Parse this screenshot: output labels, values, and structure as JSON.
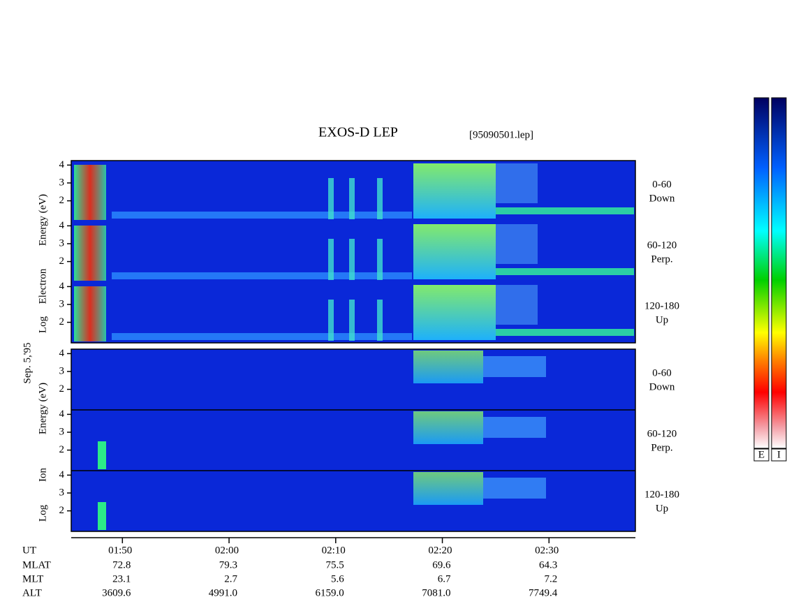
{
  "chart_data": {
    "type": "spectrogram",
    "title": "EXOS-D LEP",
    "file": "[95090501.lep]",
    "date": "Sep. 5,'95",
    "groups": [
      {
        "ylabel": [
          "Log",
          "Electron",
          "Energy (eV)"
        ],
        "panels": [
          {
            "pitch": "0-60",
            "dir": "Down"
          },
          {
            "pitch": "60-120",
            "dir": "Perp."
          },
          {
            "pitch": "120-180",
            "dir": "Up"
          }
        ]
      },
      {
        "ylabel": [
          "Log",
          "Ion",
          "Energy (eV)"
        ],
        "panels": [
          {
            "pitch": "0-60",
            "dir": "Down"
          },
          {
            "pitch": "60-120",
            "dir": "Perp."
          },
          {
            "pitch": "120-180",
            "dir": "Up"
          }
        ]
      }
    ],
    "ylim": [
      0.85,
      4.25
    ],
    "yticks": [
      2,
      3,
      4
    ],
    "xlim": [
      105.2,
      158.1
    ],
    "xticks": [
      {
        "value": 110,
        "label": "01:50"
      },
      {
        "value": 120,
        "label": "02:00"
      },
      {
        "value": 130,
        "label": "02:10"
      },
      {
        "value": 140,
        "label": "02:20"
      },
      {
        "value": 150,
        "label": "02:30"
      }
    ],
    "ut_label": "UT",
    "ephemeris": [
      {
        "name": "MLAT",
        "values": [
          "72.8",
          "79.3",
          "75.5",
          "69.6",
          "64.3"
        ]
      },
      {
        "name": "MLT",
        "values": [
          "23.1",
          "2.7",
          "5.6",
          "6.7",
          "7.2"
        ]
      },
      {
        "name": "ALT",
        "values": [
          "3609.6",
          "4991.0",
          "6159.0",
          "7081.0",
          "7749.4"
        ]
      }
    ],
    "colorbars": [
      "E",
      "I"
    ]
  }
}
